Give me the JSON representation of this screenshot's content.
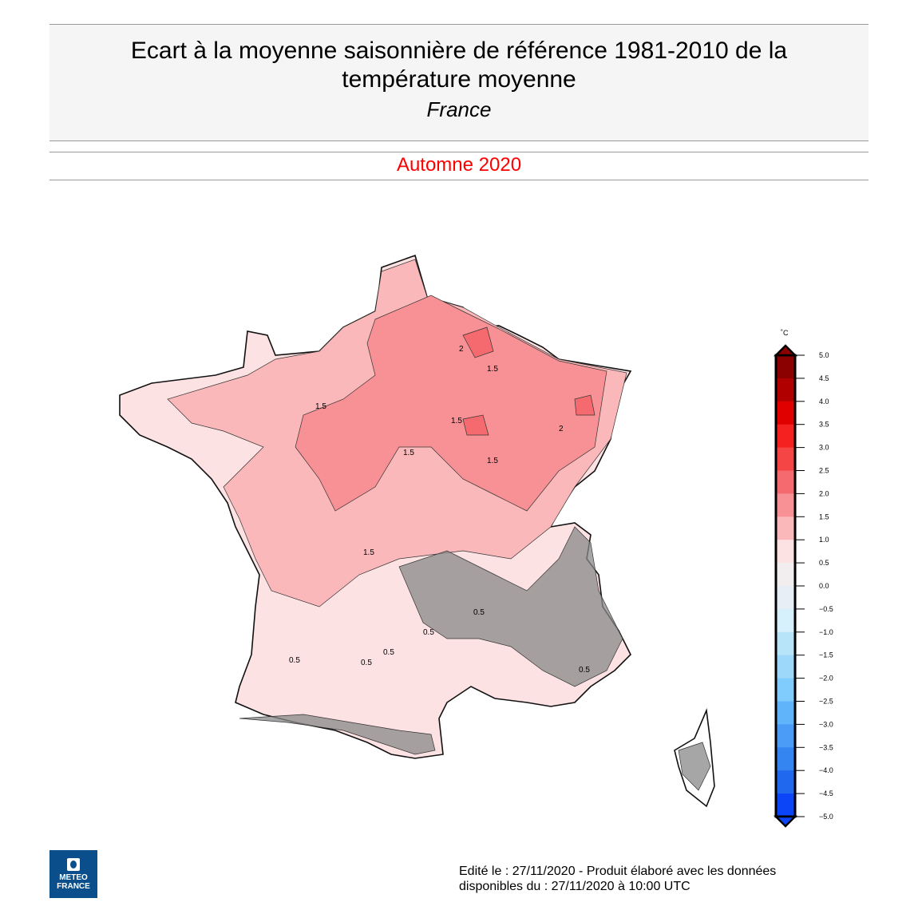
{
  "header": {
    "title": "Ecart à la moyenne saisonnière de référence 1981-2010 de la température moyenne",
    "subtitle": "France"
  },
  "period": "Automne 2020",
  "colorbar": {
    "unit": "˚C",
    "ticks": [
      "5.0",
      "4.5",
      "4.0",
      "3.5",
      "3.0",
      "2.5",
      "2.0",
      "1.5",
      "1.0",
      "0.5",
      "0.0",
      "−0.5",
      "−1.0",
      "−1.5",
      "−2.0",
      "−2.5",
      "−3.0",
      "−3.5",
      "−4.0",
      "−4.5",
      "−5.0"
    ],
    "colors": [
      "#8b0000",
      "#b00000",
      "#e00000",
      "#f52020",
      "#f54545",
      "#f56a6e",
      "#f79195",
      "#fbb8ba",
      "#fde2e3",
      "#f2eef0",
      "#e8eef6",
      "#d6f0fc",
      "#b8e4fa",
      "#9dd8fb",
      "#80ccfc",
      "#60b4fa",
      "#4a9cf6",
      "#3484f2",
      "#2068ee",
      "#0c44f8"
    ]
  },
  "map_labels": [
    "1.5",
    "1.5",
    "1.5",
    "1.5",
    "2",
    "2",
    "1.5",
    "1.5",
    "0.5",
    "0.5",
    "0.5",
    "0.5",
    "0.5",
    "0.5"
  ],
  "logo": {
    "line1": "METEO",
    "line2": "FRANCE"
  },
  "footer": {
    "line1": "Edité le : 27/11/2020 - Produit élaboré avec les données",
    "line2": "disponibles du : 27/11/2020 à 10:00 UTC"
  }
}
